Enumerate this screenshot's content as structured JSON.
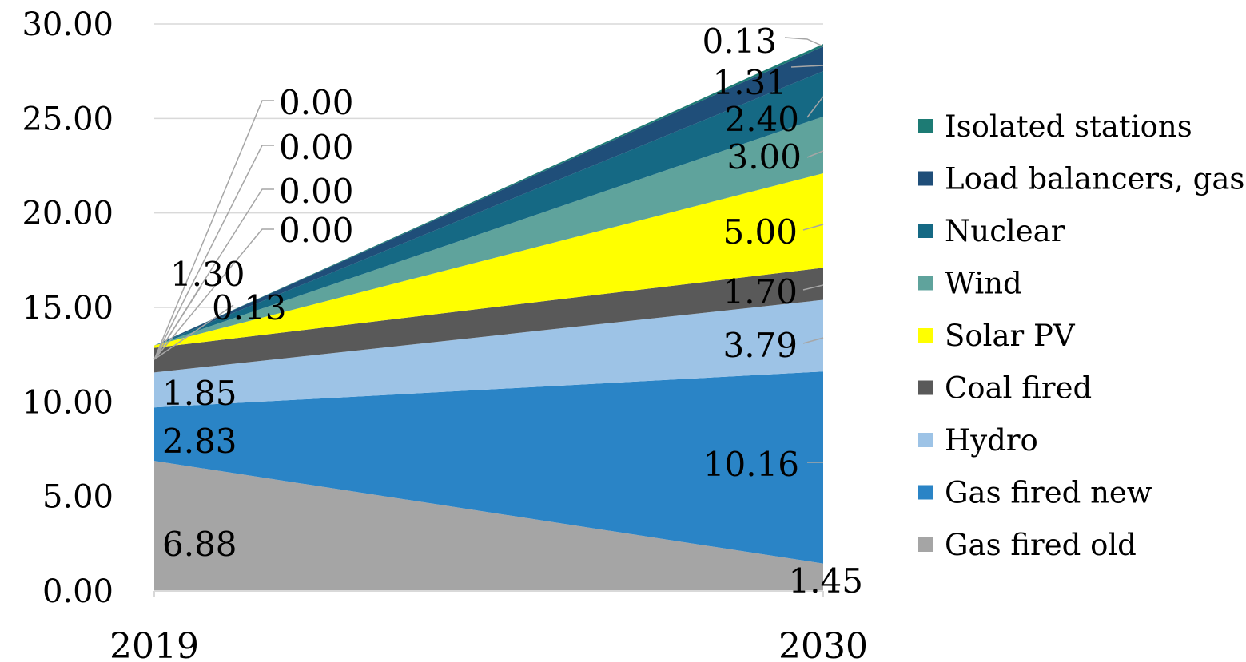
{
  "chart_data": {
    "type": "area",
    "stacked": true,
    "title": "",
    "xlabel": "",
    "ylabel": "",
    "categories": [
      "2019",
      "2030"
    ],
    "ylim": [
      0,
      30
    ],
    "y_ticks": [
      "0.00",
      "5.00",
      "10.00",
      "15.00",
      "20.00",
      "25.00",
      "30.00"
    ],
    "grid": true,
    "legend_position": "right",
    "series": [
      {
        "name": "Gas fired old",
        "values": [
          6.88,
          1.45
        ],
        "labels": [
          "6.88",
          "1.45"
        ],
        "color": "#a5a5a5"
      },
      {
        "name": "Gas fired new",
        "values": [
          2.83,
          10.16
        ],
        "labels": [
          "2.83",
          "10.16"
        ],
        "color": "#2a84c6"
      },
      {
        "name": "Hydro",
        "values": [
          1.85,
          3.79
        ],
        "labels": [
          "1.85",
          "3.79"
        ],
        "color": "#9dc3e6"
      },
      {
        "name": "Coal fired",
        "values": [
          1.3,
          1.7
        ],
        "labels": [
          "1.30",
          "1.70"
        ],
        "color": "#595959"
      },
      {
        "name": "Solar PV",
        "values": [
          0.13,
          5.0
        ],
        "labels": [
          "0.13",
          "5.00"
        ],
        "color": "#ffff00"
      },
      {
        "name": "Wind",
        "values": [
          0.0,
          3.0
        ],
        "labels": [
          "0.00",
          "3.00"
        ],
        "color": "#5fa39c"
      },
      {
        "name": "Nuclear",
        "values": [
          0.0,
          2.4
        ],
        "labels": [
          "0.00",
          "2.40"
        ],
        "color": "#156984"
      },
      {
        "name": "Load balancers, gas",
        "values": [
          0.0,
          1.31
        ],
        "labels": [
          "0.00",
          "1.31"
        ],
        "color": "#1f4e79"
      },
      {
        "name": "Isolated stations",
        "values": [
          0.0,
          0.13
        ],
        "labels": [
          "0.00",
          "0.13"
        ],
        "color": "#1d7b74"
      }
    ]
  }
}
